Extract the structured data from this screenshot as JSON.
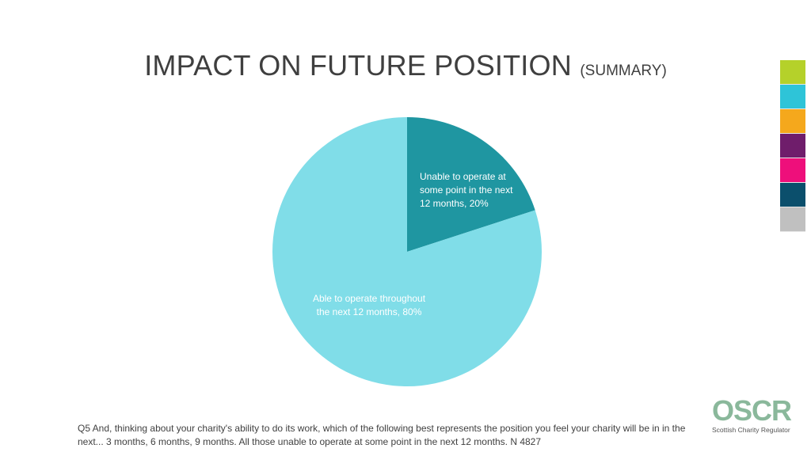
{
  "header": {
    "title": "IMPACT ON FUTURE POSITION",
    "subtitle": "(SUMMARY)"
  },
  "side_palette": [
    "#b5d12a",
    "#2ec4d8",
    "#f5a81c",
    "#6f1d6b",
    "#ee0f7b",
    "#0b4f6c",
    "#c0c0c0"
  ],
  "chart_data": {
    "type": "pie",
    "slices": [
      {
        "label_lines": [
          "Unable to operate at",
          "some point in the next",
          "12 months, 20%"
        ],
        "value": 20,
        "color": "#1f96a1"
      },
      {
        "label_lines": [
          "Able to operate throughout",
          "the next 12 months, 80%"
        ],
        "value": 80,
        "color": "#80dde8"
      }
    ]
  },
  "footnote": "Q5 And, thinking about your charity's ability to do its work, which of the following best represents the position you feel your charity will be in in the next... 3 months, 6 months, 9 months. All those unable to operate at some point in the next 12 months. N 4827",
  "logo": {
    "wordmark": "OSCR",
    "tagline": "Scottish Charity Regulator"
  }
}
